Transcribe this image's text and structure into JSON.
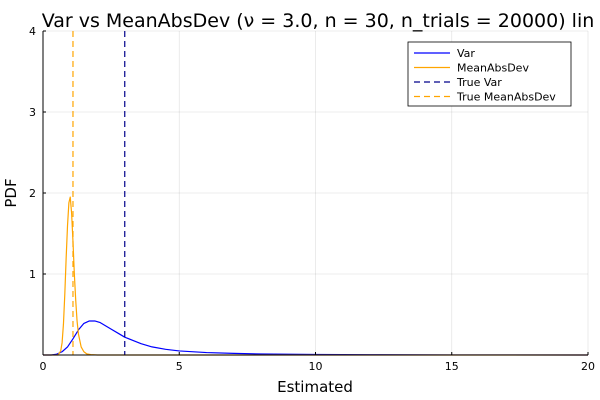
{
  "chart_data": {
    "type": "line",
    "title": "Var vs MeanAbsDev (ν = 3.0, n = 30, n_trials = 20000) lin",
    "xlabel": "Estimated",
    "ylabel": "PDF",
    "xlim": [
      0,
      20
    ],
    "ylim": [
      0,
      4
    ],
    "xticks": [
      0,
      5,
      10,
      15,
      20
    ],
    "yticks": [
      1,
      2,
      3,
      4
    ],
    "grid": true,
    "legend_position": "top-right",
    "series": [
      {
        "name": "Var",
        "color": "#0000ff",
        "style": "solid",
        "x": [
          0.0,
          0.3,
          0.5,
          0.7,
          0.9,
          1.1,
          1.3,
          1.5,
          1.7,
          1.9,
          2.1,
          2.3,
          2.5,
          2.8,
          3.0,
          3.3,
          3.6,
          4.0,
          4.5,
          5.0,
          6.0,
          7.0,
          8.0,
          10.0,
          12.0,
          15.0,
          20.0
        ],
        "y": [
          0.0,
          0.0,
          0.01,
          0.04,
          0.1,
          0.2,
          0.31,
          0.39,
          0.42,
          0.42,
          0.4,
          0.36,
          0.32,
          0.26,
          0.22,
          0.18,
          0.14,
          0.1,
          0.07,
          0.05,
          0.03,
          0.02,
          0.012,
          0.006,
          0.003,
          0.001,
          0.0
        ]
      },
      {
        "name": "MeanAbsDev",
        "color": "#ffa500",
        "style": "solid",
        "x": [
          0.0,
          0.55,
          0.65,
          0.7,
          0.75,
          0.8,
          0.85,
          0.9,
          0.95,
          1.0,
          1.05,
          1.1,
          1.15,
          1.2,
          1.25,
          1.3,
          1.4,
          1.5,
          1.6,
          1.75,
          2.0,
          2.5,
          20.0
        ],
        "y": [
          0.0,
          0.0,
          0.05,
          0.15,
          0.38,
          0.75,
          1.2,
          1.6,
          1.88,
          1.95,
          1.75,
          1.4,
          1.0,
          0.68,
          0.42,
          0.26,
          0.1,
          0.04,
          0.015,
          0.005,
          0.0,
          0.0,
          0.0
        ]
      },
      {
        "name": "True Var",
        "color": "#00008b",
        "style": "dashed",
        "vline": 3.0
      },
      {
        "name": "True MeanAbsDev",
        "color": "#ffa500",
        "style": "dashed",
        "vline": 1.1
      }
    ]
  }
}
